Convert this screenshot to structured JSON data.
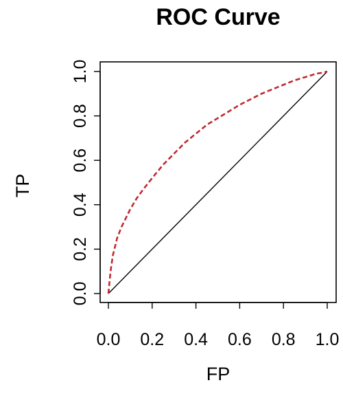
{
  "chart_data": {
    "type": "line",
    "title": "ROC Curve",
    "xlabel": "FP",
    "ylabel": "TP",
    "xlim": [
      0,
      1
    ],
    "ylim": [
      0,
      1
    ],
    "x_ticks": [
      "0.0",
      "0.2",
      "0.4",
      "0.6",
      "0.8",
      "1.0"
    ],
    "y_ticks": [
      "0.0",
      "0.2",
      "0.4",
      "0.6",
      "0.8",
      "1.0"
    ],
    "grid": false,
    "series": [
      {
        "style": "dashed",
        "color": "#c0282f",
        "x": [
          0.0,
          0.005,
          0.01,
          0.02,
          0.04,
          0.06,
          0.08,
          0.1,
          0.13,
          0.16,
          0.2,
          0.25,
          0.3,
          0.35,
          0.4,
          0.45,
          0.5,
          0.55,
          0.6,
          0.65,
          0.7,
          0.75,
          0.8,
          0.85,
          0.9,
          0.95,
          0.98,
          1.0
        ],
        "y": [
          0.0,
          0.05,
          0.1,
          0.17,
          0.25,
          0.3,
          0.34,
          0.38,
          0.43,
          0.47,
          0.52,
          0.58,
          0.63,
          0.68,
          0.72,
          0.76,
          0.79,
          0.82,
          0.85,
          0.875,
          0.9,
          0.92,
          0.94,
          0.96,
          0.975,
          0.99,
          0.995,
          1.0
        ]
      },
      {
        "style": "solid",
        "color": "#000000",
        "x": [
          0.0,
          1.0
        ],
        "y": [
          0.0,
          1.0
        ]
      }
    ]
  }
}
